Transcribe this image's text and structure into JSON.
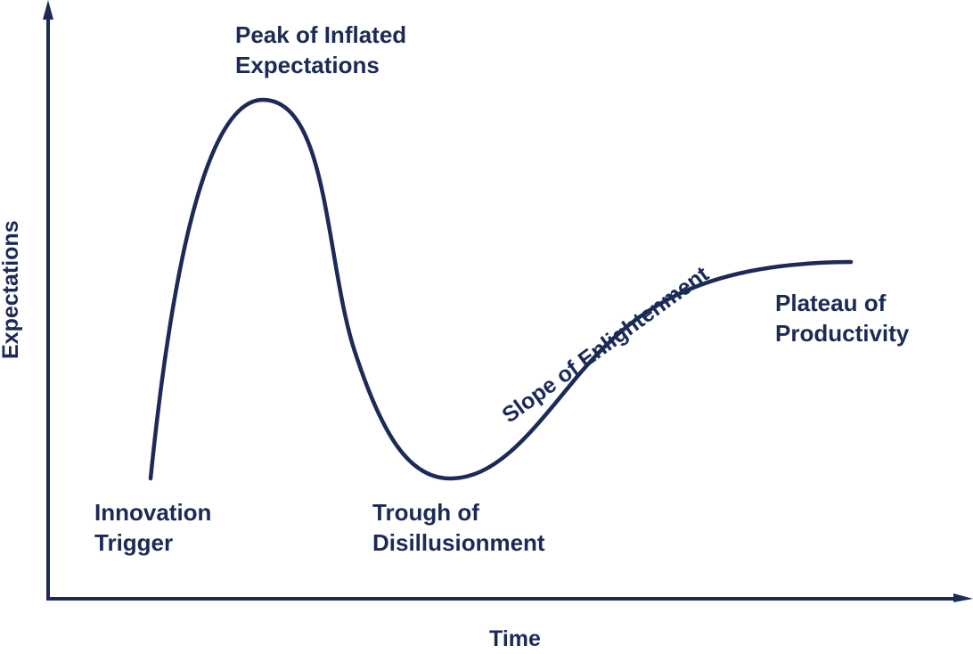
{
  "color": "#1b2a57",
  "axes": {
    "y_label": "Expectations",
    "x_label": "Time"
  },
  "phases": {
    "innovation_trigger": [
      "Innovation",
      "Trigger"
    ],
    "peak": [
      "Peak of Inflated",
      "Expectations"
    ],
    "trough": [
      "Trough of",
      "Disillusionment"
    ],
    "slope": "Slope of Enlightenment",
    "plateau": [
      "Plateau of",
      "Productivity"
    ]
  }
}
